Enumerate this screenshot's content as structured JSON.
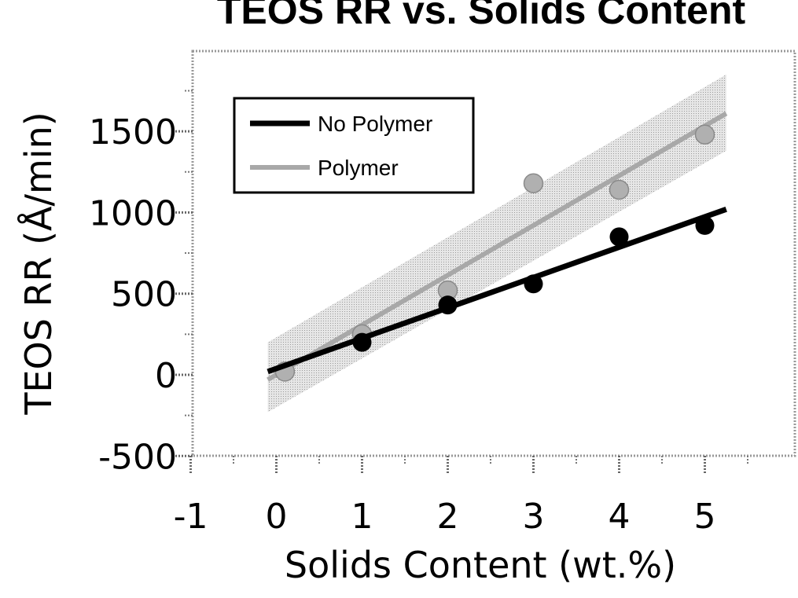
{
  "chart_data": {
    "type": "scatter",
    "title": "TEOS RR vs. Solids Content",
    "xlabel": "Solids Content (wt.%)",
    "ylabel": "TEOS RR (Å/min)",
    "xlim": [
      -1,
      6
    ],
    "ylim": [
      -500,
      2000
    ],
    "x_ticks": [
      -1,
      0,
      1,
      2,
      3,
      4,
      5
    ],
    "y_ticks": [
      -500,
      0,
      500,
      1000,
      1500
    ],
    "grid": false,
    "legend": "top-left",
    "series": [
      {
        "name": "No Polymer",
        "color": "#000000",
        "points": [
          {
            "x": 1,
            "y": 200
          },
          {
            "x": 2,
            "y": 430
          },
          {
            "x": 3,
            "y": 560
          },
          {
            "x": 4,
            "y": 850
          },
          {
            "x": 5,
            "y": 920
          }
        ],
        "fit": {
          "x": [
            -0.1,
            5.25
          ],
          "y": [
            20,
            1020
          ]
        }
      },
      {
        "name": "Polymer",
        "color": "#aaaaaa",
        "points": [
          {
            "x": 0.1,
            "y": 20
          },
          {
            "x": 1,
            "y": 250
          },
          {
            "x": 2,
            "y": 520
          },
          {
            "x": 3,
            "y": 1180
          },
          {
            "x": 4,
            "y": 1140
          },
          {
            "x": 5,
            "y": 1480
          }
        ],
        "fit": {
          "x": [
            -0.1,
            5.25
          ],
          "y": [
            -30,
            1610
          ]
        },
        "band": {
          "x": [
            -0.1,
            5.25
          ],
          "upper": [
            200,
            1850
          ],
          "lower": [
            -230,
            1380
          ]
        }
      }
    ]
  }
}
